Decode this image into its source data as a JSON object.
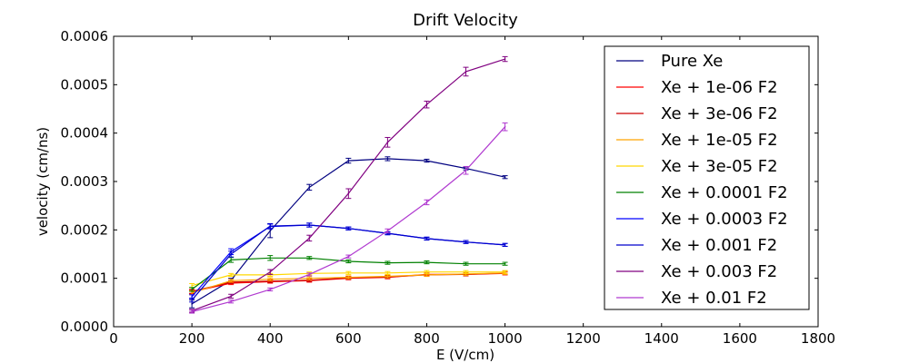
{
  "chart_data": {
    "type": "line",
    "title": "Drift Velocity",
    "xlabel": "E (V/cm)",
    "ylabel": "velocity (cm/ns)",
    "xlim": [
      0,
      1800
    ],
    "ylim": [
      0,
      0.0006
    ],
    "x_ticks": [
      0,
      200,
      400,
      600,
      800,
      1000,
      1200,
      1400,
      1600,
      1800
    ],
    "y_ticks": [
      0,
      0.0001,
      0.0002,
      0.0003,
      0.0004,
      0.0005,
      0.0006
    ],
    "x_tick_labels": [
      "0",
      "200",
      "400",
      "600",
      "800",
      "1000",
      "1200",
      "1400",
      "1600",
      "1800"
    ],
    "y_tick_labels": [
      "0.0000",
      "0.0001",
      "0.0002",
      "0.0003",
      "0.0004",
      "0.0005",
      "0.0006"
    ],
    "grid": false,
    "legend_position": "top-right",
    "x": [
      200,
      300,
      400,
      500,
      600,
      700,
      800,
      900,
      1000
    ],
    "series": [
      {
        "name": "Pure Xe",
        "color": "#000080",
        "values": [
          4.7e-05,
          9.6e-05,
          0.000198,
          0.000288,
          0.000343,
          0.000347,
          0.000343,
          0.000327,
          0.000309
        ],
        "errors": [
          8e-06,
          4e-06,
          1.4e-05,
          6e-06,
          5e-06,
          4e-06,
          3e-06,
          3e-06,
          3e-06
        ]
      },
      {
        "name": "Xe + 1e-06 F2",
        "color": "#ff0000",
        "values": [
          7.2e-05,
          9e-05,
          9.3e-05,
          9.5e-05,
          0.0001,
          0.000102,
          0.000108,
          0.000108,
          0.00011
        ],
        "errors": [
          4e-06,
          3e-06,
          3e-06,
          3e-06,
          3e-06,
          3e-06,
          3e-06,
          3e-06,
          3e-06
        ]
      },
      {
        "name": "Xe + 3e-06 F2",
        "color": "#cc0000",
        "values": [
          7.3e-05,
          9.2e-05,
          9.4e-05,
          9.6e-05,
          0.000101,
          0.000103,
          0.000107,
          0.000108,
          0.000111
        ],
        "errors": [
          4e-06,
          3e-06,
          3e-06,
          3e-06,
          3e-06,
          3e-06,
          3e-06,
          3e-06,
          3e-06
        ]
      },
      {
        "name": "Xe + 1e-05 F2",
        "color": "#ffa500",
        "values": [
          7e-05,
          9.5e-05,
          9.8e-05,
          0.0001,
          0.000102,
          0.000104,
          0.000107,
          0.000109,
          0.000111
        ],
        "errors": [
          4e-06,
          3e-06,
          3e-06,
          3e-06,
          3e-06,
          3e-06,
          3e-06,
          3e-06,
          3e-06
        ]
      },
      {
        "name": "Xe + 3e-05 F2",
        "color": "#ffd700",
        "values": [
          8.5e-05,
          0.000107,
          0.000107,
          0.00011,
          0.000111,
          0.000111,
          0.000113,
          0.000113,
          0.000113
        ],
        "errors": [
          4e-06,
          3e-06,
          3e-06,
          3e-06,
          3e-06,
          3e-06,
          3e-06,
          3e-06,
          3e-06
        ]
      },
      {
        "name": "Xe + 0.0001 F2",
        "color": "#008000",
        "values": [
          7.7e-05,
          0.000138,
          0.000142,
          0.000142,
          0.000135,
          0.000132,
          0.000133,
          0.00013,
          0.00013
        ],
        "errors": [
          4e-06,
          5e-06,
          5e-06,
          3e-06,
          3e-06,
          3e-06,
          3e-06,
          3e-06,
          3e-06
        ]
      },
      {
        "name": "Xe + 0.0003 F2",
        "color": "#0000ff",
        "values": [
          6.2e-05,
          0.000155,
          0.000207,
          0.00021,
          0.000203,
          0.000193,
          0.000182,
          0.000175,
          0.000169
        ],
        "errors": [
          4e-06,
          6e-06,
          5e-06,
          4e-06,
          3e-06,
          3e-06,
          3e-06,
          3e-06,
          3e-06
        ]
      },
      {
        "name": "Xe + 0.001 F2",
        "color": "#0000cc",
        "values": [
          5.5e-05,
          0.00015,
          0.000208,
          0.00021,
          0.000203,
          0.000193,
          0.000182,
          0.000175,
          0.000169
        ],
        "errors": [
          4e-06,
          6e-06,
          5e-06,
          4e-06,
          3e-06,
          3e-06,
          3e-06,
          3e-06,
          3e-06
        ]
      },
      {
        "name": "Xe + 0.003 F2",
        "color": "#800080",
        "values": [
          3.3e-05,
          6.3e-05,
          0.000113,
          0.000183,
          0.000275,
          0.000381,
          0.000459,
          0.000527,
          0.000553
        ],
        "errors": [
          3e-06,
          4e-06,
          5e-06,
          6e-06,
          1e-05,
          1e-05,
          7e-06,
          9e-06,
          5e-06
        ]
      },
      {
        "name": "Xe + 0.01 F2",
        "color": "#b03ad0",
        "values": [
          3.1e-05,
          5.2e-05,
          7.7e-05,
          0.000108,
          0.000145,
          0.000198,
          0.000257,
          0.000323,
          0.000413
        ],
        "errors": [
          3e-06,
          3e-06,
          3e-06,
          3e-06,
          3e-06,
          4e-06,
          5e-06,
          8e-06,
          8e-06
        ]
      }
    ]
  }
}
